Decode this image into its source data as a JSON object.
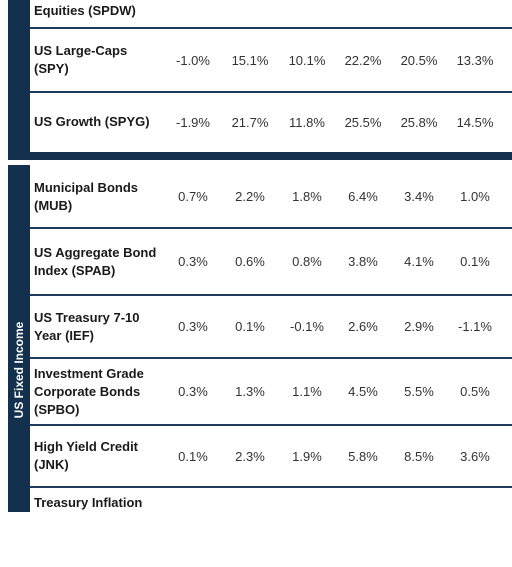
{
  "sidebar": {
    "fixed_income": "US Fixed Income"
  },
  "table": {
    "rows": [
      {
        "label": "Equities (SPDW)",
        "values": []
      },
      {
        "label": "US Large-Caps (SPY)",
        "values": [
          "-1.0%",
          "15.1%",
          "10.1%",
          "22.2%",
          "20.5%",
          "13.3%"
        ]
      },
      {
        "label": "US Growth (SPYG)",
        "values": [
          "-1.9%",
          "21.7%",
          "11.8%",
          "25.5%",
          "25.8%",
          "14.5%"
        ]
      },
      {
        "label": "Municipal Bonds (MUB)",
        "values": [
          "0.7%",
          "2.2%",
          "1.8%",
          "6.4%",
          "3.4%",
          "1.0%"
        ]
      },
      {
        "label": "US Aggregate Bond Index (SPAB)",
        "values": [
          "0.3%",
          "0.6%",
          "0.8%",
          "3.8%",
          "4.1%",
          "0.1%"
        ]
      },
      {
        "label": "US Treasury 7-10 Year (IEF)",
        "values": [
          "0.3%",
          "0.1%",
          "-0.1%",
          "2.6%",
          "2.9%",
          "-1.1%"
        ]
      },
      {
        "label": "Investment Grade Corporate Bonds (SPBO)",
        "values": [
          "0.3%",
          "1.3%",
          "1.1%",
          "4.5%",
          "5.5%",
          "0.5%"
        ]
      },
      {
        "label": "High Yield Credit (JNK)",
        "values": [
          "0.1%",
          "2.3%",
          "1.9%",
          "5.8%",
          "8.5%",
          "3.6%"
        ]
      },
      {
        "label": "Treasury Inflation",
        "values": []
      }
    ]
  }
}
